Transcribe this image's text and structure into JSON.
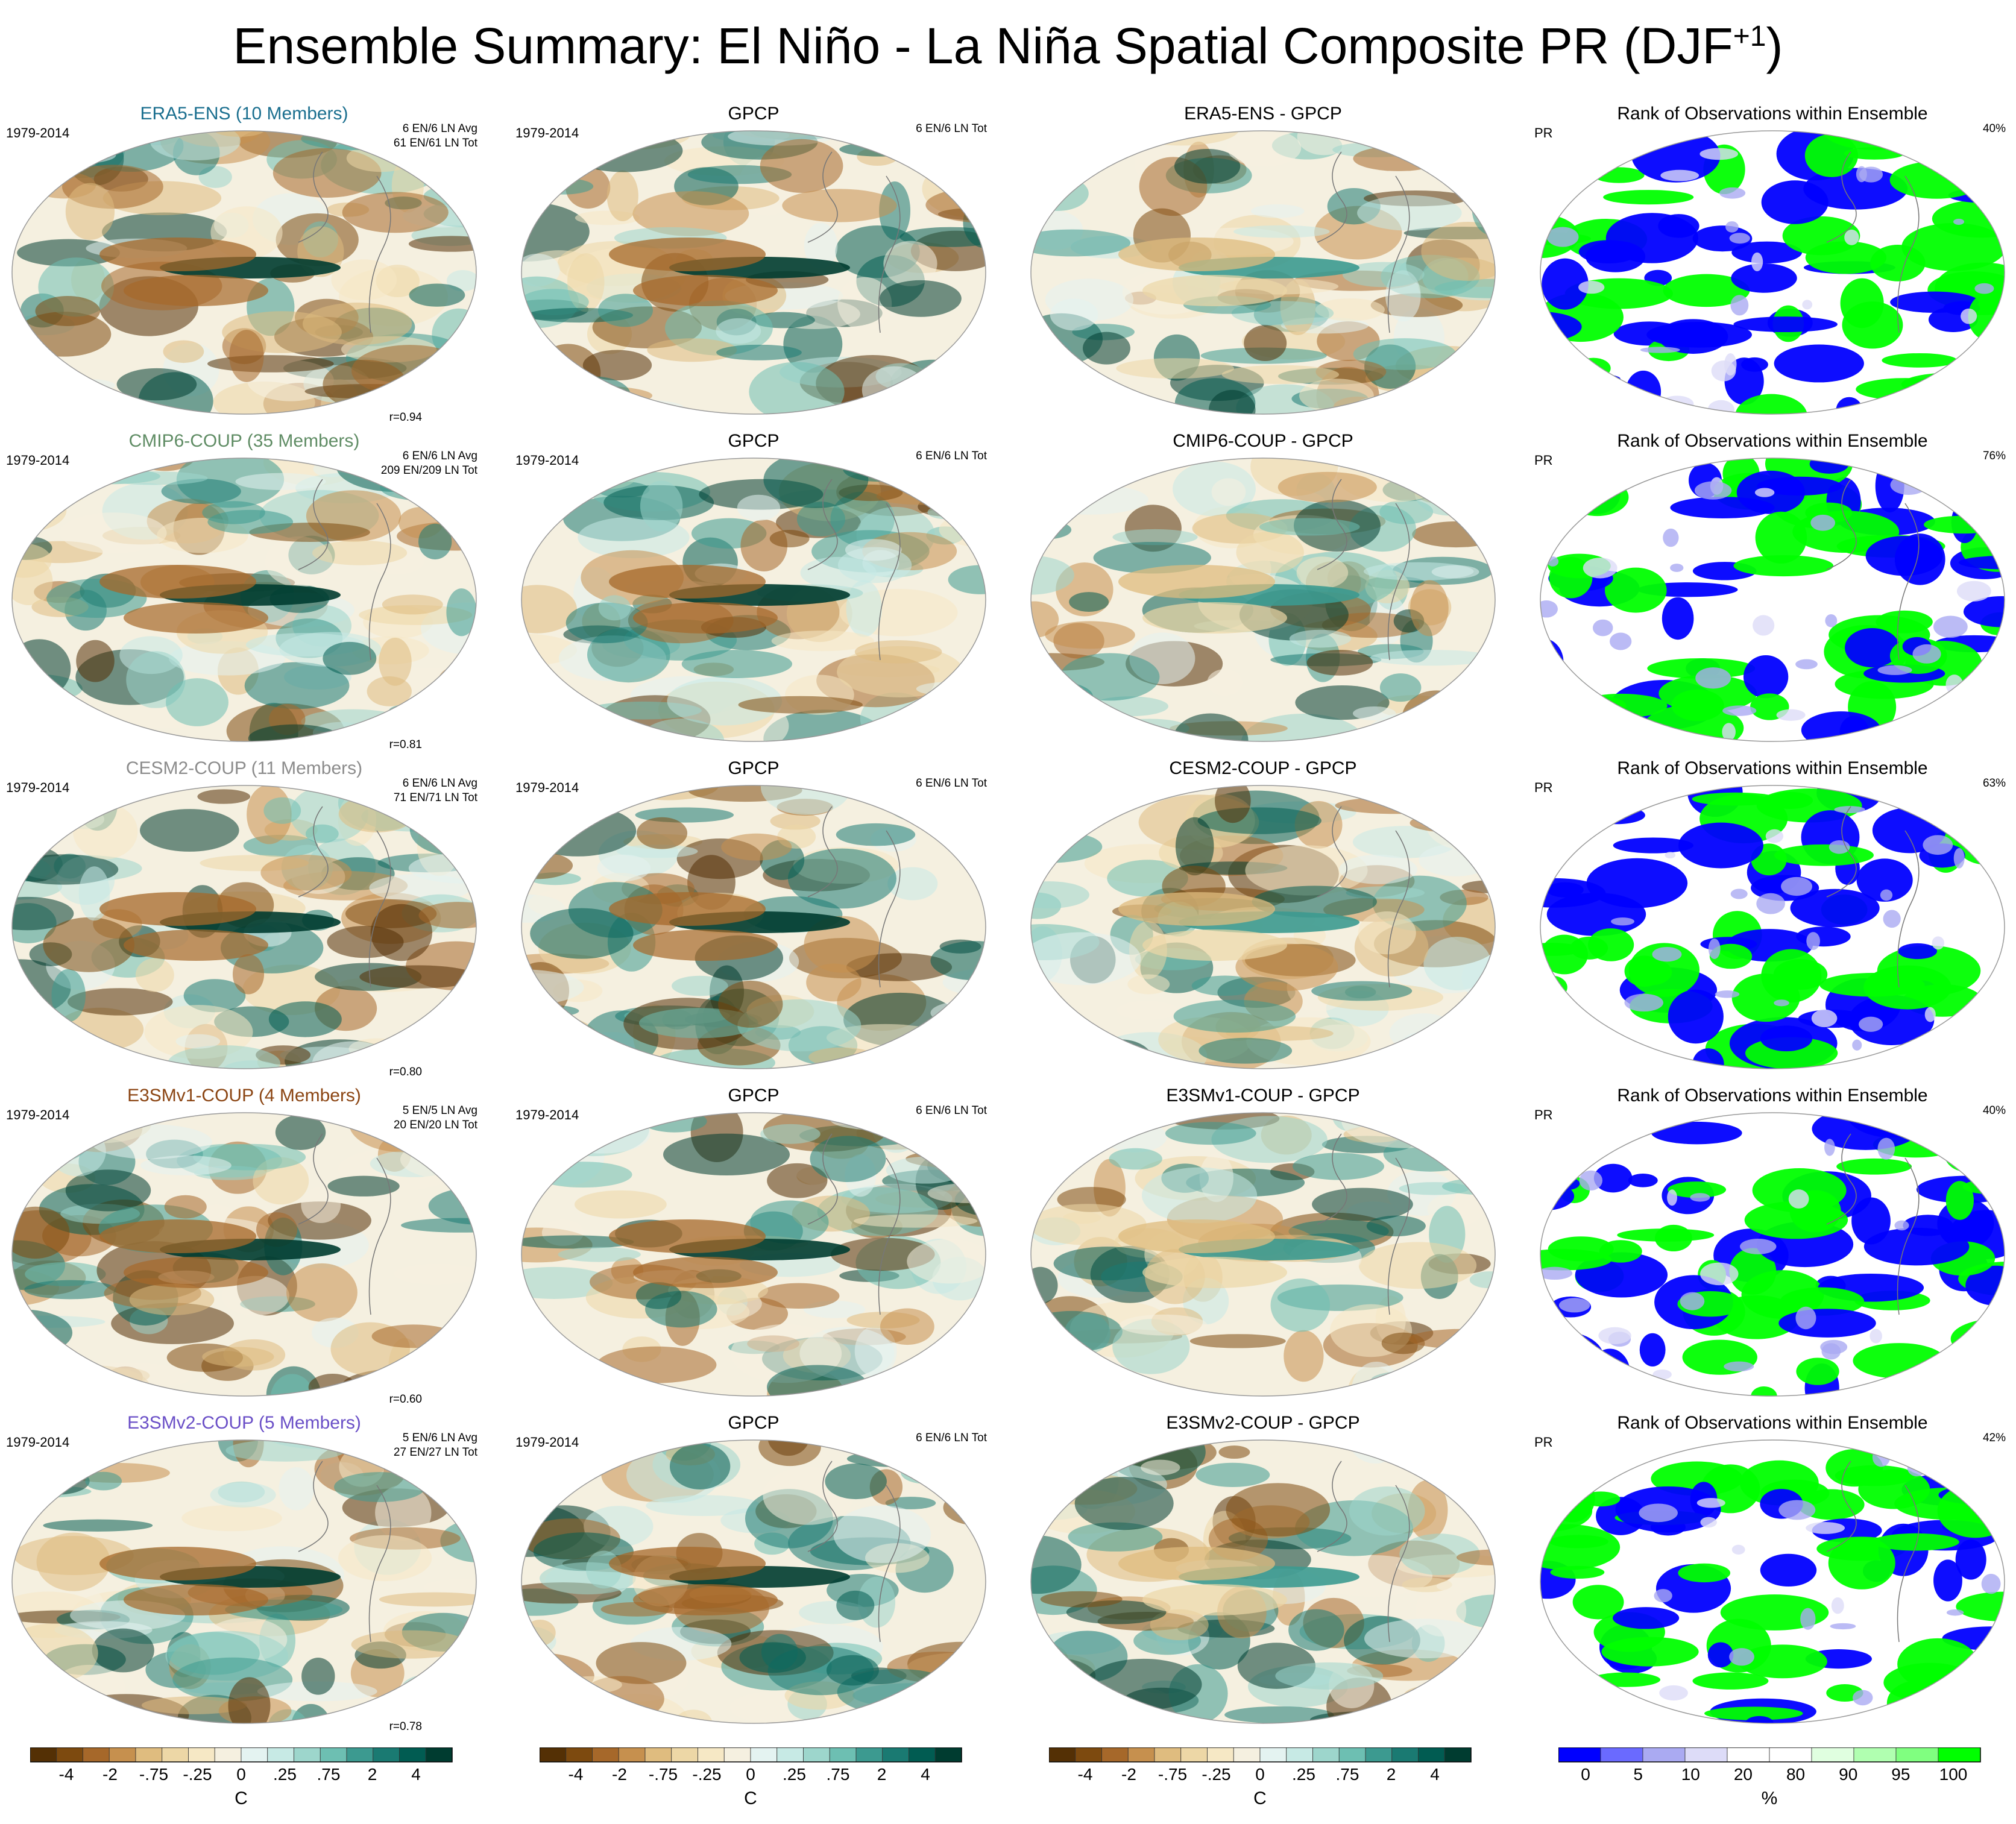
{
  "title": "Ensemble Summary: El Niño - La Niña Spatial Composite PR (DJF",
  "title_sup": "+1",
  "title_close": ")",
  "colors": {
    "diverging": [
      "#543005",
      "#7d4a0f",
      "#a6682a",
      "#c6904e",
      "#dfbc7f",
      "#edd7a6",
      "#f6e8c5",
      "#f5f0e0",
      "#e4f3f1",
      "#c7eae5",
      "#9dd6cc",
      "#6dbfb2",
      "#3c9a90",
      "#1a7a72",
      "#015c52",
      "#003c30"
    ],
    "rank": [
      "#0000ff",
      "#6a6aff",
      "#aaaaf2",
      "#dddcf8",
      "#ffffff",
      "#ffffff",
      "#e0ffe0",
      "#b0ffb0",
      "#80ff80",
      "#00ff00"
    ],
    "title_colors": {
      "era5": "#1b6f8f",
      "cmip6": "#5f8c64",
      "cesm2": "#8c8c8c",
      "e3smv1": "#8b4513",
      "e3smv2": "#6a4fc7"
    }
  },
  "rows": [
    {
      "model_title": "ERA5-ENS (10 Members)",
      "model_color": "#1b6f8f",
      "period": "1979-2014",
      "avg_line1": "6 EN/6 LN Avg",
      "avg_line2": "61 EN/61 LN Tot",
      "corr": "r=0.94",
      "obs_title": "GPCP",
      "obs_period": "1979-2014",
      "obs_tot": "6 EN/6 LN Tot",
      "diff_title": "ERA5-ENS - GPCP",
      "rank_title": "Rank of Observations within Ensemble",
      "rank_var": "PR",
      "rank_pct": "40%"
    },
    {
      "model_title": "CMIP6-COUP (35 Members)",
      "model_color": "#5f8c64",
      "period": "1979-2014",
      "avg_line1": "6 EN/6 LN Avg",
      "avg_line2": "209 EN/209 LN Tot",
      "corr": "r=0.81",
      "obs_title": "GPCP",
      "obs_period": "1979-2014",
      "obs_tot": "6 EN/6 LN Tot",
      "diff_title": "CMIP6-COUP - GPCP",
      "rank_title": "Rank of Observations within Ensemble",
      "rank_var": "PR",
      "rank_pct": "76%"
    },
    {
      "model_title": "CESM2-COUP (11 Members)",
      "model_color": "#8c8c8c",
      "period": "1979-2014",
      "avg_line1": "6 EN/6 LN Avg",
      "avg_line2": "71 EN/71 LN Tot",
      "corr": "r=0.80",
      "obs_title": "GPCP",
      "obs_period": "1979-2014",
      "obs_tot": "6 EN/6 LN Tot",
      "diff_title": "CESM2-COUP - GPCP",
      "rank_title": "Rank of Observations within Ensemble",
      "rank_var": "PR",
      "rank_pct": "63%"
    },
    {
      "model_title": "E3SMv1-COUP (4 Members)",
      "model_color": "#8b4513",
      "period": "1979-2014",
      "avg_line1": "5 EN/5 LN Avg",
      "avg_line2": "20 EN/20 LN Tot",
      "corr": "r=0.60",
      "obs_title": "GPCP",
      "obs_period": "1979-2014",
      "obs_tot": "6 EN/6 LN Tot",
      "diff_title": "E3SMv1-COUP - GPCP",
      "rank_title": "Rank of Observations within Ensemble",
      "rank_var": "PR",
      "rank_pct": "40%"
    },
    {
      "model_title": "E3SMv2-COUP (5 Members)",
      "model_color": "#6a4fc7",
      "period": "1979-2014",
      "avg_line1": "5 EN/6 LN Avg",
      "avg_line2": "27 EN/27 LN Tot",
      "corr": "r=0.78",
      "obs_title": "GPCP",
      "obs_period": "1979-2014",
      "obs_tot": "6 EN/6 LN Tot",
      "diff_title": "E3SMv2-COUP - GPCP",
      "rank_title": "Rank of Observations within Ensemble",
      "rank_var": "PR",
      "rank_pct": "42%"
    }
  ],
  "chart_data": [
    {
      "type": "heatmap",
      "title": "Ensemble Summary: El Niño - La Niña Spatial Composite PR (DJF+1)",
      "colorbar_diverging": {
        "tick_labels": [
          "-4",
          "-2",
          "-.75",
          "-.25",
          "0",
          ".25",
          ".75",
          "2",
          "4"
        ],
        "unit": "C",
        "levels": 16
      },
      "colorbar_rank": {
        "tick_labels": [
          "0",
          "5",
          "10",
          "20",
          "80",
          "90",
          "95",
          "100"
        ],
        "unit": "%",
        "levels": 10
      },
      "pattern_correlations": [
        {
          "model": "ERA5-ENS",
          "r": 0.94
        },
        {
          "model": "CMIP6-COUP",
          "r": 0.81
        },
        {
          "model": "CESM2-COUP",
          "r": 0.8
        },
        {
          "model": "E3SMv1-COUP",
          "r": 0.6
        },
        {
          "model": "E3SMv2-COUP",
          "r": 0.78
        }
      ],
      "rank_percentages": [
        {
          "model": "ERA5-ENS",
          "pct": 40
        },
        {
          "model": "CMIP6-COUP",
          "pct": 76
        },
        {
          "model": "CESM2-COUP",
          "pct": 63
        },
        {
          "model": "E3SMv1-COUP",
          "pct": 40
        },
        {
          "model": "E3SMv2-COUP",
          "pct": 42
        }
      ]
    }
  ],
  "colorbars": [
    {
      "ticks": [
        "-4",
        "-2",
        "-.75",
        "-.25",
        "0",
        ".25",
        ".75",
        "2",
        "4"
      ],
      "unit": "C"
    },
    {
      "ticks": [
        "-4",
        "-2",
        "-.75",
        "-.25",
        "0",
        ".25",
        ".75",
        "2",
        "4"
      ],
      "unit": "C"
    },
    {
      "ticks": [
        "-4",
        "-2",
        "-.75",
        "-.25",
        "0",
        ".25",
        ".75",
        "2",
        "4"
      ],
      "unit": "C"
    },
    {
      "ticks": [
        "0",
        "5",
        "10",
        "20",
        "80",
        "90",
        "95",
        "100"
      ],
      "unit": "%"
    }
  ]
}
